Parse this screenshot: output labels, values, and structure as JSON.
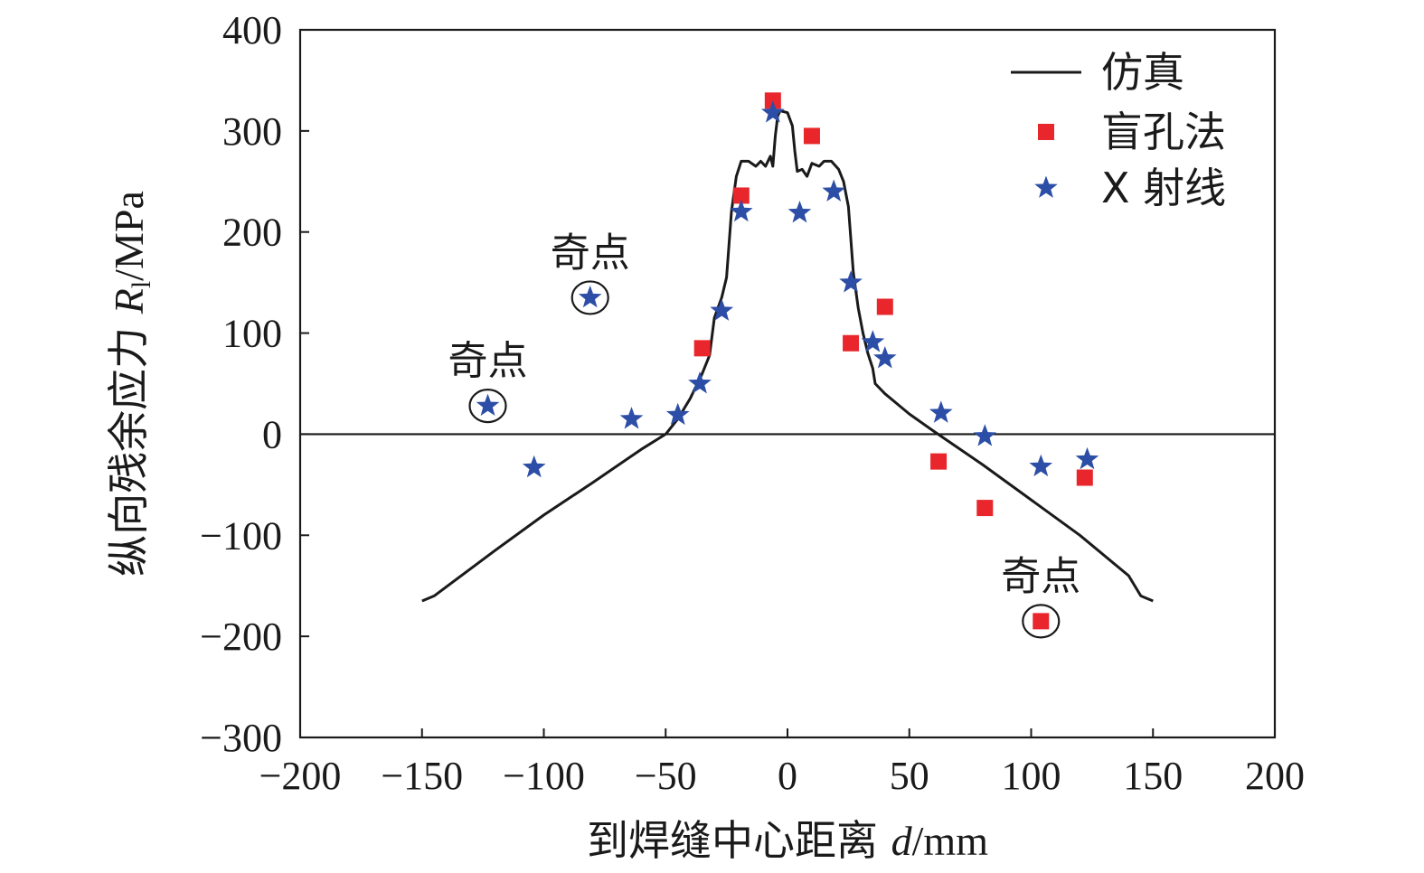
{
  "chart_data": {
    "type": "scatter",
    "xlabel": {
      "prefix": "到焊缝中心距离 ",
      "var": "d",
      "suffix": "/mm"
    },
    "ylabel": {
      "prefix": "纵向残余应力 ",
      "var": "R",
      "sub": "l",
      "suffix": "/MPa"
    },
    "xlim": [
      -200,
      200
    ],
    "ylim": [
      -300,
      400
    ],
    "xticks": [
      -200,
      -150,
      -100,
      -50,
      0,
      50,
      100,
      150,
      200
    ],
    "yticks": [
      -300,
      -200,
      -100,
      0,
      100,
      200,
      300,
      400
    ],
    "xtick_labels": [
      "−200",
      "−150",
      "−100",
      "−50",
      "0",
      "50",
      "100",
      "150",
      "200"
    ],
    "ytick_labels": [
      "−300",
      "−200",
      "−100",
      "0",
      "100",
      "200",
      "300",
      "400"
    ],
    "zero_line": true,
    "legend_position": "top-right",
    "series": [
      {
        "name": "仿真",
        "kind": "line",
        "color": "#1a1a1a",
        "points": [
          [
            -150,
            -165
          ],
          [
            -145,
            -160
          ],
          [
            -120,
            -115
          ],
          [
            -100,
            -80
          ],
          [
            -80,
            -48
          ],
          [
            -60,
            -15
          ],
          [
            -50,
            0
          ],
          [
            -45,
            15
          ],
          [
            -40,
            35
          ],
          [
            -35,
            60
          ],
          [
            -32,
            78
          ],
          [
            -30,
            115
          ],
          [
            -27,
            135
          ],
          [
            -25,
            155
          ],
          [
            -23,
            220
          ],
          [
            -21,
            255
          ],
          [
            -19,
            270
          ],
          [
            -16,
            270
          ],
          [
            -13,
            265
          ],
          [
            -11,
            270
          ],
          [
            -9,
            265
          ],
          [
            -7,
            275
          ],
          [
            -6,
            265
          ],
          [
            -5,
            295
          ],
          [
            -4,
            315
          ],
          [
            -3,
            320
          ],
          [
            0,
            318
          ],
          [
            2,
            305
          ],
          [
            3,
            280
          ],
          [
            4,
            260
          ],
          [
            6,
            262
          ],
          [
            8,
            255
          ],
          [
            10,
            268
          ],
          [
            13,
            265
          ],
          [
            15,
            270
          ],
          [
            18,
            270
          ],
          [
            21,
            262
          ],
          [
            23,
            250
          ],
          [
            25,
            225
          ],
          [
            27,
            160
          ],
          [
            29,
            125
          ],
          [
            31,
            100
          ],
          [
            33,
            80
          ],
          [
            35,
            65
          ],
          [
            36,
            50
          ],
          [
            40,
            40
          ],
          [
            45,
            30
          ],
          [
            50,
            20
          ],
          [
            60,
            3
          ],
          [
            80,
            -30
          ],
          [
            100,
            -65
          ],
          [
            120,
            -100
          ],
          [
            140,
            -140
          ],
          [
            145,
            -160
          ],
          [
            150,
            -165
          ]
        ]
      },
      {
        "name": "盲孔法",
        "kind": "square",
        "color": "#e8262b",
        "points": [
          [
            -35,
            85
          ],
          [
            -19,
            236
          ],
          [
            -6,
            330
          ],
          [
            10,
            295
          ],
          [
            26,
            90
          ],
          [
            40,
            126
          ],
          [
            62,
            -27
          ],
          [
            81,
            -73
          ],
          [
            104,
            -185
          ],
          [
            122,
            -43
          ]
        ]
      },
      {
        "name": "X 射线",
        "kind": "star",
        "color": "#2c4ea6",
        "points": [
          [
            -123,
            28
          ],
          [
            -104,
            -33
          ],
          [
            -81,
            135
          ],
          [
            -64,
            15
          ],
          [
            -45,
            19
          ],
          [
            -36,
            50
          ],
          [
            -27,
            122
          ],
          [
            -19,
            220
          ],
          [
            -6,
            318
          ],
          [
            5,
            219
          ],
          [
            19,
            240
          ],
          [
            26,
            150
          ],
          [
            35,
            91
          ],
          [
            40,
            75
          ],
          [
            63,
            21
          ],
          [
            81,
            -2
          ],
          [
            104,
            -32
          ],
          [
            123,
            -25
          ]
        ]
      }
    ],
    "annotations": [
      {
        "text": "奇点",
        "x": -123,
        "y": 28
      },
      {
        "text": "奇点",
        "x": -81,
        "y": 135
      },
      {
        "text": "奇点",
        "x": 104,
        "y": -185
      }
    ]
  }
}
